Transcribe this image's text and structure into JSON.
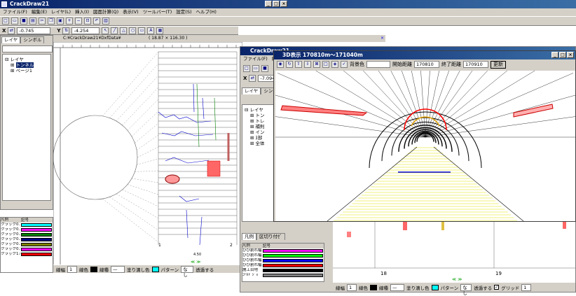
{
  "main": {
    "title": "CrackDraw21",
    "menu": [
      "ファイル(F)",
      "編集(E)",
      "レイヤ(L)",
      "挿入(I)",
      "図面計算(Q)",
      "表示(V)",
      "ツールバー(T)",
      "設定(S)",
      "ヘルプ(H)"
    ],
    "coord_x_label": "X",
    "coord_x": "-0.745",
    "coord_y_label": "Y",
    "coord_y": "-4.254",
    "tabs": [
      "レイヤ",
      "シンボル"
    ],
    "tree": [
      "レイヤ",
      "トンネル",
      "ページ1"
    ],
    "doc_path": "C:¥CrackDraw21¥DxfData¥",
    "doc_coords": "( 18.87 × 116.30 )",
    "legend_headers": [
      "凡例",
      "記号"
    ],
    "legend": [
      {
        "name": "クラック0.1mm未満",
        "color": "#00ffff"
      },
      {
        "name": "クラック0.1mm",
        "color": "#ff00ff"
      },
      {
        "name": "クラック0.2mm",
        "color": "#008000"
      },
      {
        "name": "クラック0.3mm",
        "color": "#000080"
      },
      {
        "name": "クラック0.3〜0.4",
        "color": "#808000"
      },
      {
        "name": "クラック0.5〜1.0",
        "color": "#ff00ff"
      },
      {
        "name": "クラック1.0mm以上",
        "color": "#ff0000"
      }
    ],
    "status": {
      "width_label": "線幅",
      "width": "1",
      "color_label": "線色",
      "style_label": "線種",
      "fill_label": "塗り潰し色",
      "pattern_label": "パターン",
      "pattern": "なし",
      "transparent_label": "透過する"
    },
    "nav_arrows": "≪  ≫",
    "page_numbers": [
      "1",
      "2"
    ],
    "dim_label": "4.50"
  },
  "second": {
    "title": "CrackDraw21",
    "menu": [
      "ファイル(F)",
      "編"
    ],
    "coord": "-7.094",
    "tabs": [
      "レイヤ",
      "シンボル"
    ],
    "tree": [
      "レイヤ",
      "トン",
      "トレ",
      "補則",
      "イン",
      "ﾇ部",
      "全体"
    ],
    "bottom_tabs": [
      "凡例",
      "区切り付ｾﾞ"
    ],
    "legend_headers": [
      "凡例",
      "記号"
    ],
    "legend": [
      {
        "name": "ひび割れ幅",
        "color": "#ff00ff"
      },
      {
        "name": "ひび割れ幅",
        "color": "#00ff00"
      },
      {
        "name": "ひび割れ幅",
        "color": "#0000ff"
      },
      {
        "name": "ひび割れ幅",
        "color": "#ff0000"
      },
      {
        "name": "施工目地",
        "color": "#000000"
      },
      {
        "name": "ｺｰﾙﾄﾞｼﾞｮ",
        "color": "#808080"
      }
    ],
    "status": {
      "width_label": "線幅",
      "width": "1",
      "color_label": "線色",
      "style_label": "線種",
      "fill_label": "塗り潰し色",
      "pattern_label": "パターン",
      "pattern": "なし",
      "transparent_label": "透過する",
      "grid_label": "グリッド",
      "grid_value": "1"
    },
    "page_numbers": [
      "18",
      "19"
    ]
  },
  "view3d": {
    "title": "3D表示 170810m〜171040m",
    "bg_label": "背景色",
    "start_label": "開始距離",
    "start": "170810",
    "end_label": "終了距離",
    "end": "170910",
    "update_button": "更新"
  }
}
